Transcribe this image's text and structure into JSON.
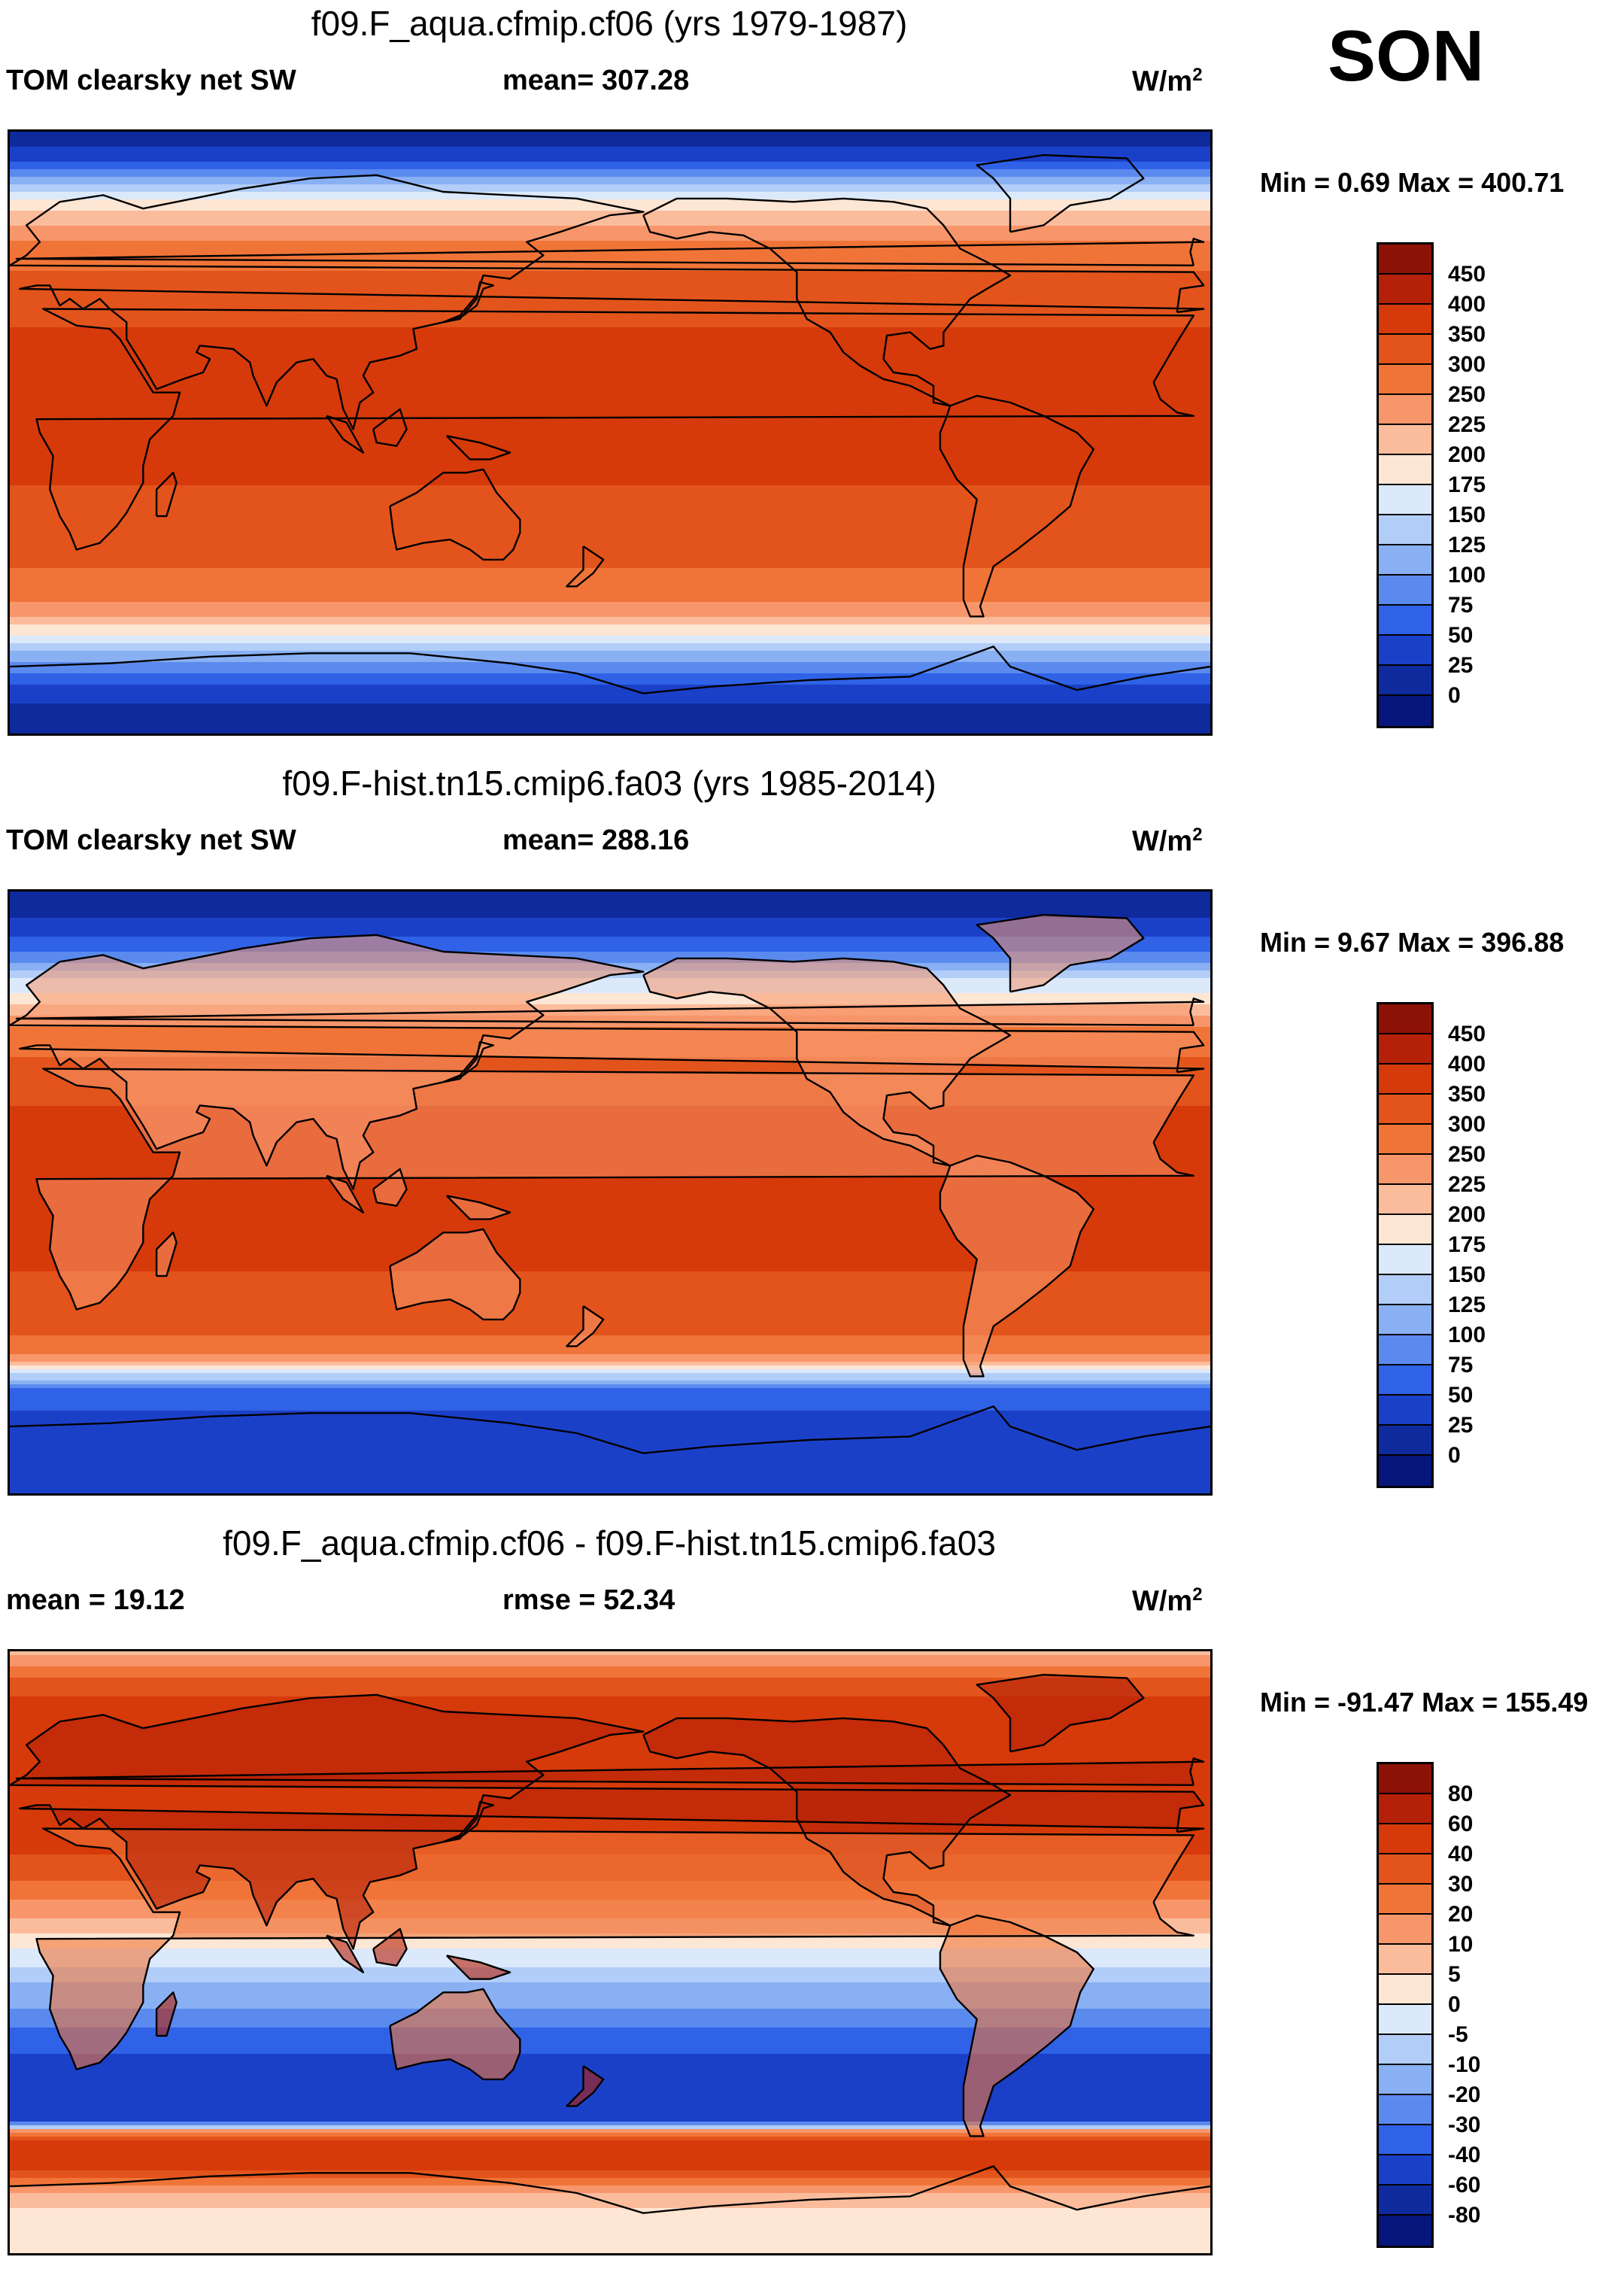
{
  "season": "SON",
  "panels": [
    {
      "id": "p1",
      "title": "f09.F_aqua.cfmip.cf06 (yrs 1979-1987)",
      "left_label": "TOM clearsky net SW",
      "mid_label": "mean= 307.28",
      "units": "W/m",
      "units_sup": "2",
      "minmax": "Min =   0.69 Max = 400.71",
      "colorbar_labels": [
        "450",
        "400",
        "350",
        "300",
        "250",
        "225",
        "200",
        "175",
        "150",
        "125",
        "100",
        "75",
        "50",
        "25",
        "0"
      ],
      "colorbar_colors": [
        "#8c1208",
        "#b52108",
        "#d63a0a",
        "#e2541c",
        "#f07438",
        "#f7966a",
        "#fbbc9c",
        "#fde6d4",
        "#dbe9fb",
        "#b2cdf7",
        "#89b0f3",
        "#5b8aef",
        "#2f62e6",
        "#1b40c8",
        "#0f2a9d",
        "#07167a"
      ],
      "zonal_profile": [
        {
          "lat": 90,
          "value": 5
        },
        {
          "lat": 82,
          "value": 40
        },
        {
          "lat": 76,
          "value": 100
        },
        {
          "lat": 70,
          "value": 170
        },
        {
          "lat": 64,
          "value": 215
        },
        {
          "lat": 56,
          "value": 260
        },
        {
          "lat": 46,
          "value": 310
        },
        {
          "lat": 36,
          "value": 345
        },
        {
          "lat": 24,
          "value": 360
        },
        {
          "lat": 8,
          "value": 355
        },
        {
          "lat": 0,
          "value": 375
        },
        {
          "lat": -8,
          "value": 355
        },
        {
          "lat": -24,
          "value": 345
        },
        {
          "lat": -36,
          "value": 320
        },
        {
          "lat": -46,
          "value": 280
        },
        {
          "lat": -54,
          "value": 230
        },
        {
          "lat": -60,
          "value": 180
        },
        {
          "lat": -66,
          "value": 120
        },
        {
          "lat": -74,
          "value": 55
        },
        {
          "lat": -82,
          "value": 20
        },
        {
          "lat": -90,
          "value": 5
        }
      ]
    },
    {
      "id": "p2",
      "title": "f09.F-hist.tn15.cmip6.fa03 (yrs 1985-2014)",
      "left_label": "TOM clearsky net SW",
      "mid_label": "mean= 288.16",
      "units": "W/m",
      "units_sup": "2",
      "minmax": "Min =   9.67 Max = 396.88",
      "colorbar_labels": [
        "450",
        "400",
        "350",
        "300",
        "250",
        "225",
        "200",
        "175",
        "150",
        "125",
        "100",
        "75",
        "50",
        "25",
        "0"
      ],
      "colorbar_colors": [
        "#8c1208",
        "#b52108",
        "#d63a0a",
        "#e2541c",
        "#f07438",
        "#f7966a",
        "#fbbc9c",
        "#fde6d4",
        "#dbe9fb",
        "#b2cdf7",
        "#89b0f3",
        "#5b8aef",
        "#2f62e6",
        "#1b40c8",
        "#0f2a9d",
        "#07167a"
      ],
      "zonal_profile": [
        {
          "lat": 90,
          "value": 10
        },
        {
          "lat": 80,
          "value": 30
        },
        {
          "lat": 72,
          "value": 70
        },
        {
          "lat": 64,
          "value": 150
        },
        {
          "lat": 56,
          "value": 200
        },
        {
          "lat": 46,
          "value": 280
        },
        {
          "lat": 36,
          "value": 320
        },
        {
          "lat": 24,
          "value": 355
        },
        {
          "lat": 0,
          "value": 360
        },
        {
          "lat": -24,
          "value": 350
        },
        {
          "lat": -36,
          "value": 320
        },
        {
          "lat": -46,
          "value": 290
        },
        {
          "lat": -52,
          "value": 200
        },
        {
          "lat": -56,
          "value": 120
        },
        {
          "lat": -60,
          "value": 60
        },
        {
          "lat": -70,
          "value": 40
        },
        {
          "lat": -80,
          "value": 30
        },
        {
          "lat": -90,
          "value": 25
        }
      ]
    },
    {
      "id": "p3",
      "title": "f09.F_aqua.cfmip.cf06 - f09.F-hist.tn15.cmip6.fa03",
      "left_label": "mean =  19.12",
      "mid_label": "rmse =  52.34",
      "units": "W/m",
      "units_sup": "2",
      "minmax": "Min = -91.47 Max = 155.49",
      "colorbar_labels": [
        "80",
        "60",
        "40",
        "30",
        "20",
        "10",
        "5",
        "0",
        "-5",
        "-10",
        "-20",
        "-30",
        "-40",
        "-60",
        "-80"
      ],
      "colorbar_colors": [
        "#8c1208",
        "#b52108",
        "#d63a0a",
        "#e2541c",
        "#f07438",
        "#f7966a",
        "#fbbc9c",
        "#fde6d4",
        "#dbe9fb",
        "#b2cdf7",
        "#89b0f3",
        "#5b8aef",
        "#2f62e6",
        "#1b40c8",
        "#0f2a9d",
        "#07167a"
      ],
      "zonal_profile": [
        {
          "lat": 90,
          "value": 8
        },
        {
          "lat": 80,
          "value": 35
        },
        {
          "lat": 70,
          "value": 50
        },
        {
          "lat": 50,
          "value": 55
        },
        {
          "lat": 34,
          "value": 45
        },
        {
          "lat": 22,
          "value": 32
        },
        {
          "lat": 12,
          "value": 12
        },
        {
          "lat": 4,
          "value": 3
        },
        {
          "lat": -4,
          "value": -4
        },
        {
          "lat": -14,
          "value": -15
        },
        {
          "lat": -24,
          "value": -32
        },
        {
          "lat": -34,
          "value": -45
        },
        {
          "lat": -44,
          "value": -55
        },
        {
          "lat": -50,
          "value": -45
        },
        {
          "lat": -54,
          "value": 20
        },
        {
          "lat": -58,
          "value": 55
        },
        {
          "lat": -64,
          "value": 45
        },
        {
          "lat": -72,
          "value": 8
        },
        {
          "lat": -80,
          "value": 2
        },
        {
          "lat": -90,
          "value": 0
        }
      ]
    }
  ]
}
